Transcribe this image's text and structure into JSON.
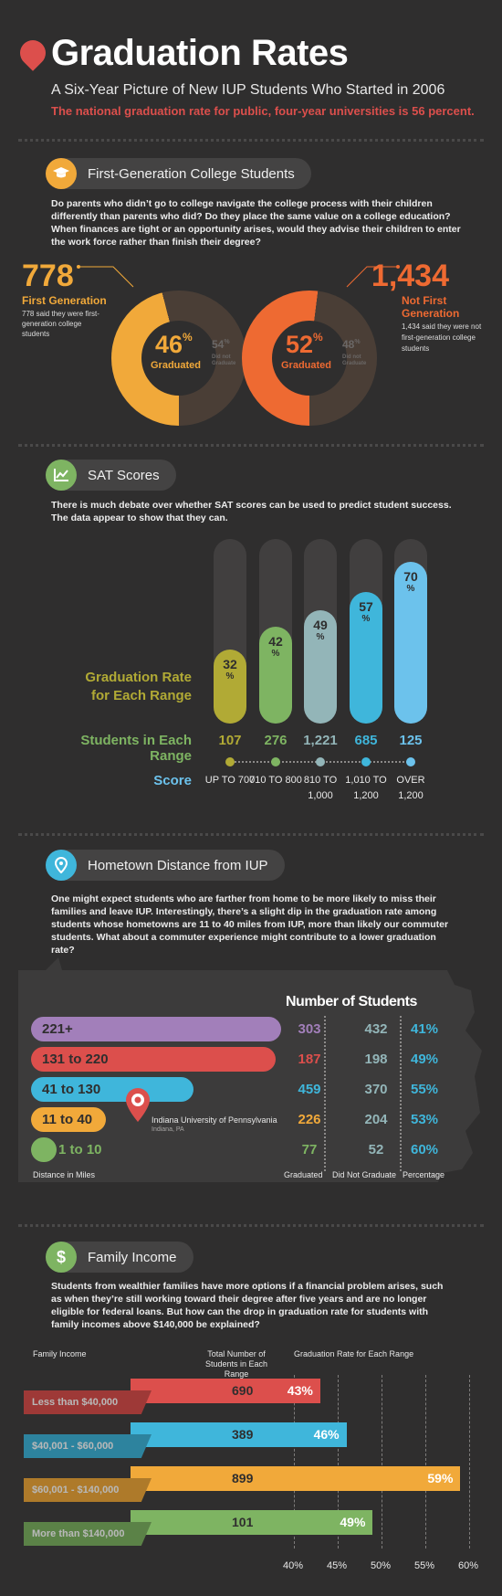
{
  "header": {
    "title": "Graduation Rates",
    "subtitle": "A Six-Year Picture of New IUP Students Who Started in 2006",
    "national": "The national graduation rate for public, four-year universities is 56 percent."
  },
  "first_gen": {
    "heading": "First-Generation College Students",
    "icon": "graduation-cap-icon",
    "text": "Do parents who didn’t go to college navigate the college process with their children differently than parents who did? Do they place the same value on a college education? When finances are tight or an opportunity arises, would they advise their children to enter the work force rather than finish their degree?",
    "left": {
      "count": "778",
      "label": "First Generation",
      "desc": "778 said they were first-generation college students",
      "pct": "46",
      "pct_sign": "%",
      "grad_label": "Graduated",
      "other_pct": "54",
      "other_label": "Did not Graduate",
      "graduated_fraction": 0.46,
      "color": "#f1a93a"
    },
    "right": {
      "count": "1,434",
      "label": "Not First Generation",
      "desc": "1,434 said they were not first-generation college students",
      "pct": "52",
      "pct_sign": "%",
      "grad_label": "Graduated",
      "other_pct": "48",
      "other_label": "Did not Graduate",
      "graduated_fraction": 0.52,
      "color": "#ee6a32"
    }
  },
  "sat": {
    "heading": "SAT Scores",
    "icon": "line-chart-icon",
    "text": "There is much debate over whether SAT scores can be used to predict student success. The data appear to show that they can.",
    "rate_label": "Graduation Rate for Each Range",
    "students_label": "Students in Each Range",
    "score_label": "Score",
    "bars": [
      {
        "rate": "32",
        "rate_value": 32,
        "students": "107",
        "score": "UP TO 700",
        "color": "#b1aa35"
      },
      {
        "rate": "42",
        "rate_value": 42,
        "students": "276",
        "score": "710 TO 800",
        "color": "#7eb462"
      },
      {
        "rate": "49",
        "rate_value": 49,
        "students": "1,221",
        "score": "810 TO 1,000",
        "color": "#93b5b8"
      },
      {
        "rate": "57",
        "rate_value": 57,
        "students": "685",
        "score": "1,010 TO 1,200",
        "color": "#3fb6db"
      },
      {
        "rate": "70",
        "rate_value": 70,
        "students": "125",
        "score": "OVER 1,200",
        "color": "#6cc2ec"
      }
    ],
    "pct_sign": "%"
  },
  "hometown": {
    "heading": "Hometown Distance from IUP",
    "icon": "location-pin-icon",
    "text": "One might expect students who are farther from home to be more likely to miss their families and leave IUP. Interestingly, there’s a slight dip in the graduation rate among students whose hometowns are 11 to 40 miles from IUP, more than likely our commuter students. What about a commuter experience might contribute to a lower graduation rate?",
    "number_heading": "Number of Students",
    "distance_caption": "Distance in Miles",
    "graduated_caption": "Graduated",
    "not_graduated_caption": "Did Not Graduate",
    "percentage_caption": "Percentage",
    "iup_name": "Indiana University of Pennsylvania",
    "iup_place": "Indiana, PA",
    "rows": [
      {
        "range": "221+",
        "graduated": "303",
        "not_graduated": "432",
        "pct": "41%",
        "color": "#a27fba"
      },
      {
        "range": "131 to 220",
        "graduated": "187",
        "not_graduated": "198",
        "pct": "49%",
        "color": "#dc4f4c"
      },
      {
        "range": "41 to 130",
        "graduated": "459",
        "not_graduated": "370",
        "pct": "55%",
        "color": "#3fb6db"
      },
      {
        "range": "11 to 40",
        "graduated": "226",
        "not_graduated": "204",
        "pct": "53%",
        "color": "#f1a93a"
      },
      {
        "range": "1 to 10",
        "graduated": "77",
        "not_graduated": "52",
        "pct": "60%",
        "color": "#7eb462"
      }
    ]
  },
  "income": {
    "heading": "Family Income",
    "icon": "dollar-icon",
    "text": "Students from wealthier families have more options if a financial problem arises, such as when they’re still working toward their degree after five years and are no longer eligible for federal loans. But how can the drop in graduation rate for students with family incomes above $140,000 be explained?",
    "col_income": "Family Income",
    "col_total": "Total Number of Students in Each Range",
    "col_rate": "Graduation Rate for Each Range",
    "rows": [
      {
        "range": "Less than $40,000",
        "students": "690",
        "rate": "43%",
        "rate_value": 43,
        "color": "#dc4f4c"
      },
      {
        "range": "$40,001 - $60,000",
        "students": "389",
        "rate": "46%",
        "rate_value": 46,
        "color": "#3fb6db"
      },
      {
        "range": "$60,001 - $140,000",
        "students": "899",
        "rate": "59%",
        "rate_value": 59,
        "color": "#f1a93a"
      },
      {
        "range": "More than $140,000",
        "students": "101",
        "rate": "49%",
        "rate_value": 49,
        "color": "#7eb462"
      }
    ],
    "ticks": [
      "40%",
      "45%",
      "50%",
      "55%",
      "60%"
    ]
  }
}
